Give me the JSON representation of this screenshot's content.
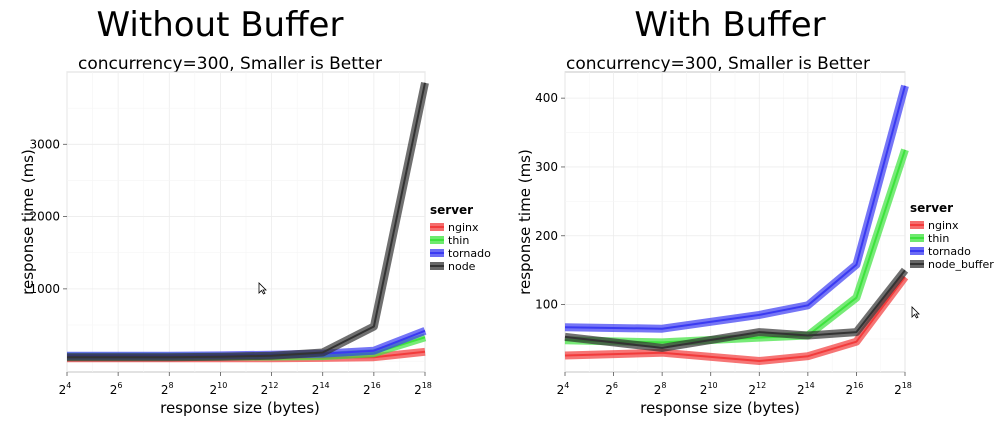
{
  "chart_data": [
    {
      "type": "line",
      "title": "Without Buffer",
      "subtitle": "concurrency=300, Smaller is Better",
      "xlabel": "response size (bytes)",
      "ylabel": "response time (ms)",
      "x": [
        4,
        6,
        8,
        10,
        12,
        14,
        16,
        18
      ],
      "x_tick_base": "2",
      "x_tick_exponents": [
        "4",
        "6",
        "8",
        "10",
        "12",
        "14",
        "16",
        "18"
      ],
      "xlim": [
        4,
        18
      ],
      "ylim": [
        -150,
        4000
      ],
      "y_ticks": [
        1000,
        2000,
        3000
      ],
      "grid": true,
      "legend_title": "server",
      "legend_position": "right",
      "series": [
        {
          "name": "nginx",
          "color": "#f23b3b",
          "values": [
            40,
            40,
            40,
            40,
            40,
            45,
            55,
            130
          ]
        },
        {
          "name": "thin",
          "color": "#3de33d",
          "values": [
            65,
            65,
            65,
            65,
            65,
            70,
            110,
            330
          ]
        },
        {
          "name": "tornado",
          "color": "#3a3af2",
          "values": [
            75,
            75,
            75,
            80,
            90,
            105,
            145,
            420
          ]
        },
        {
          "name": "node",
          "color": "#333333",
          "values": [
            55,
            55,
            55,
            60,
            75,
            120,
            480,
            3850
          ]
        }
      ]
    },
    {
      "type": "line",
      "title": "With Buffer",
      "subtitle": "concurrency=300, Smaller is Better",
      "xlabel": "response size (bytes)",
      "ylabel": "response time (ms)",
      "x": [
        4,
        8,
        12,
        14,
        16,
        18
      ],
      "x_tick_base": "2",
      "x_tick_exponents": [
        "4",
        "6",
        "8",
        "10",
        "12",
        "14",
        "16",
        "18"
      ],
      "xlim": [
        4,
        18
      ],
      "ylim": [
        2,
        438
      ],
      "y_ticks": [
        100,
        200,
        300,
        400
      ],
      "grid": true,
      "legend_title": "server",
      "legend_position": "right",
      "series": [
        {
          "name": "nginx",
          "color": "#f23b3b",
          "values": [
            26,
            30,
            18,
            25,
            46,
            140
          ]
        },
        {
          "name": "thin",
          "color": "#3de33d",
          "values": [
            48,
            45,
            52,
            55,
            110,
            325
          ]
        },
        {
          "name": "tornado",
          "color": "#3a3af2",
          "values": [
            67,
            65,
            85,
            99,
            158,
            418
          ]
        },
        {
          "name": "node_buffer",
          "color": "#333333",
          "values": [
            53,
            37,
            60,
            55,
            60,
            150
          ]
        }
      ]
    }
  ]
}
